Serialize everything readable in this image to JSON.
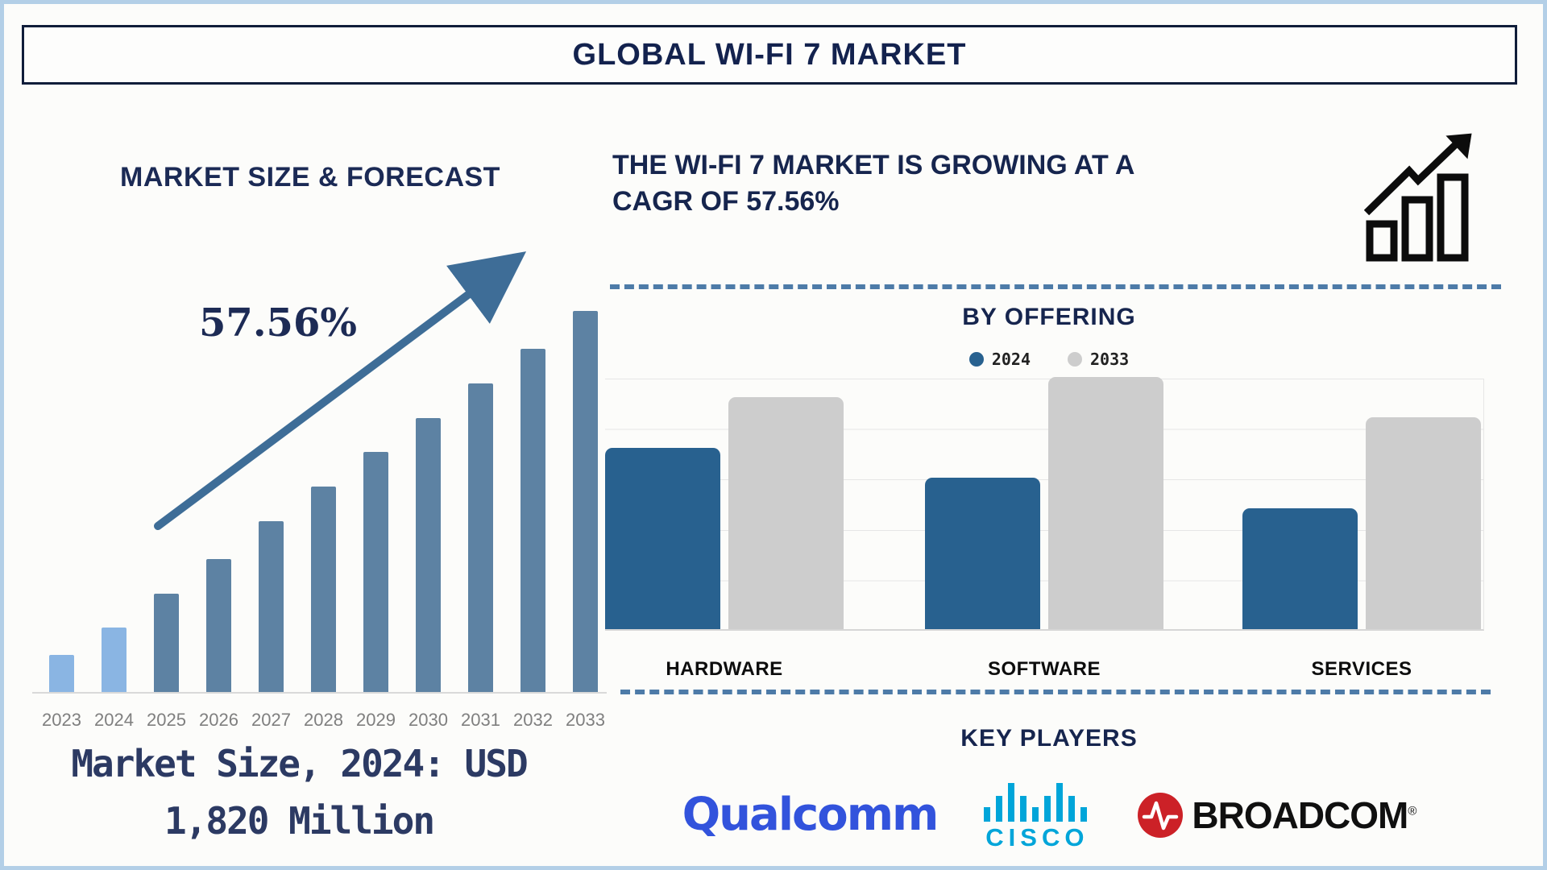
{
  "header": {
    "title": "GLOBAL WI-FI 7 MARKET"
  },
  "theme": {
    "navy": "#16254e",
    "arrow_steel_blue": "#3e6d97",
    "dashed_divider_blue": "#4d7ba8",
    "page_border_blue": "#b3cfe7",
    "title_box_border": "#101d3a",
    "axis_gray": "#d9d9d9",
    "year_label_gray": "#7f7f7f",
    "note_navy": "#2c3a63",
    "icon_black": "#0c0c0c"
  },
  "forecast": {
    "heading": "MARKET SIZE & FORECAST",
    "cagr_label": "57.56%",
    "note": "Market Size, 2024: USD 1,820 Million"
  },
  "growth": {
    "headline": "THE WI-FI 7 MARKET IS GROWING AT A CAGR OF 57.56%",
    "icon": "growth-chart-icon"
  },
  "by_offering": {
    "heading": "BY OFFERING"
  },
  "key_players": {
    "heading": "KEY PLAYERS",
    "reg_mark": "®",
    "players": [
      {
        "name": "Qualcomm",
        "color": "#3253dc"
      },
      {
        "name": "CISCO",
        "color": "#00a5d9",
        "icon": "cisco-bridge-icon"
      },
      {
        "name": "BROADCOM",
        "text_color": "#101010",
        "icon_color": "#cc2127",
        "icon": "broadcom-pulse-icon"
      }
    ]
  },
  "chart_data": [
    {
      "type": "bar",
      "title": "MARKET SIZE & FORECAST",
      "categories": [
        "2023",
        "2024",
        "2025",
        "2026",
        "2027",
        "2028",
        "2029",
        "2030",
        "2031",
        "2032",
        "2033"
      ],
      "values": [
        10,
        17,
        26,
        35,
        45,
        54,
        63,
        72,
        81,
        90,
        100
      ],
      "ylabel": "",
      "xlabel": "",
      "value_note": "relative bar heights, % of 2033 bar; y-axis unlabeled in source",
      "annotation": "57.56% CAGR growth arrow",
      "known_value": "2024 = USD 1,820 Million",
      "highlight_years": [
        "2023",
        "2024"
      ],
      "highlight_color": "#8ab5e3",
      "bar_color": "#5d82a3",
      "grid": false,
      "legend_position": "none"
    },
    {
      "type": "bar",
      "title": "BY OFFERING",
      "categories": [
        "HARDWARE",
        "SOFTWARE",
        "SERVICES"
      ],
      "series": [
        {
          "name": "2024",
          "color": "#28618f",
          "values": [
            72,
            60,
            48
          ]
        },
        {
          "name": "2033",
          "color": "#cdcdcd",
          "values": [
            92,
            100,
            84
          ]
        }
      ],
      "value_note": "relative bar heights, % of tallest bar (Software 2033); y-axis unlabeled in source",
      "grid": true,
      "legend_position": "top"
    }
  ]
}
